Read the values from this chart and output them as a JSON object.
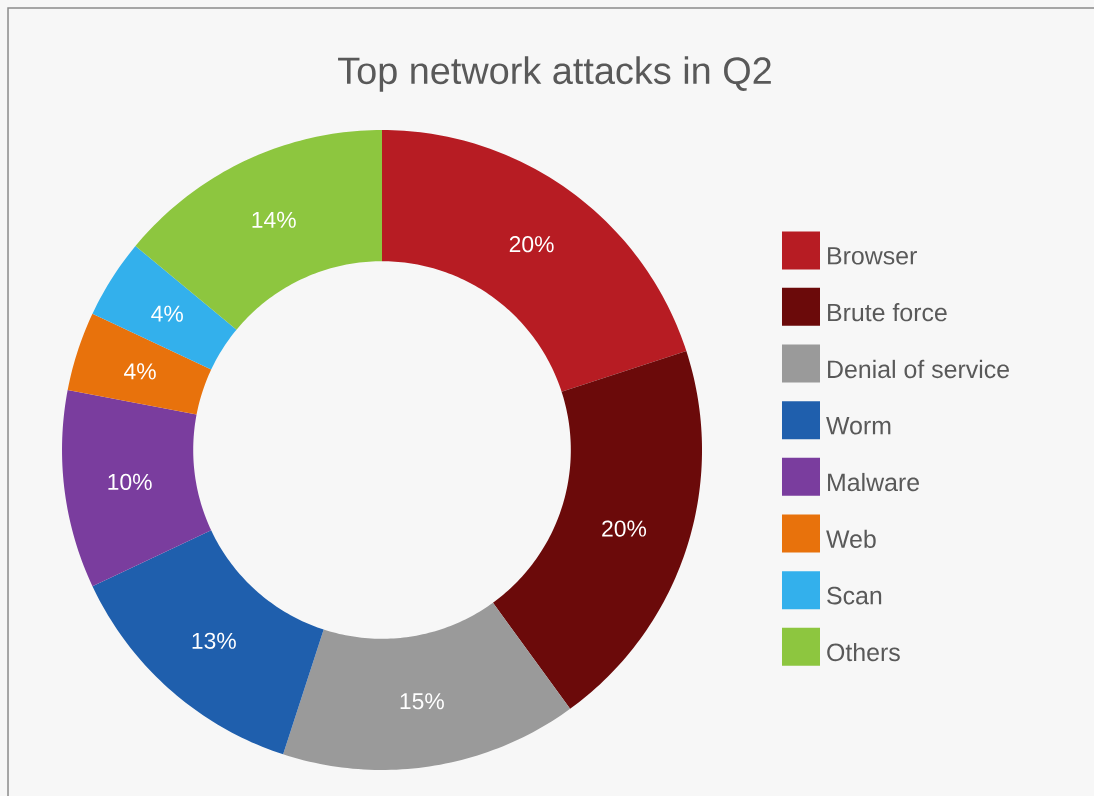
{
  "chart_data": {
    "type": "donut",
    "title": "Top network attacks in Q2",
    "categories": [
      "Browser",
      "Brute force",
      "Denial of service",
      "Worm",
      "Malware",
      "Web",
      "Scan",
      "Others"
    ],
    "values": [
      20,
      20,
      15,
      13,
      10,
      4,
      4,
      14
    ],
    "value_labels": [
      "20%",
      "20%",
      "15%",
      "13%",
      "10%",
      "4%",
      "4%",
      "14%"
    ],
    "colors": [
      "#b71c23",
      "#6b0a0a",
      "#9a9a9a",
      "#1f5fad",
      "#7a3d9e",
      "#e8720c",
      "#33b0ec",
      "#8dc63f"
    ],
    "legend": "right"
  }
}
